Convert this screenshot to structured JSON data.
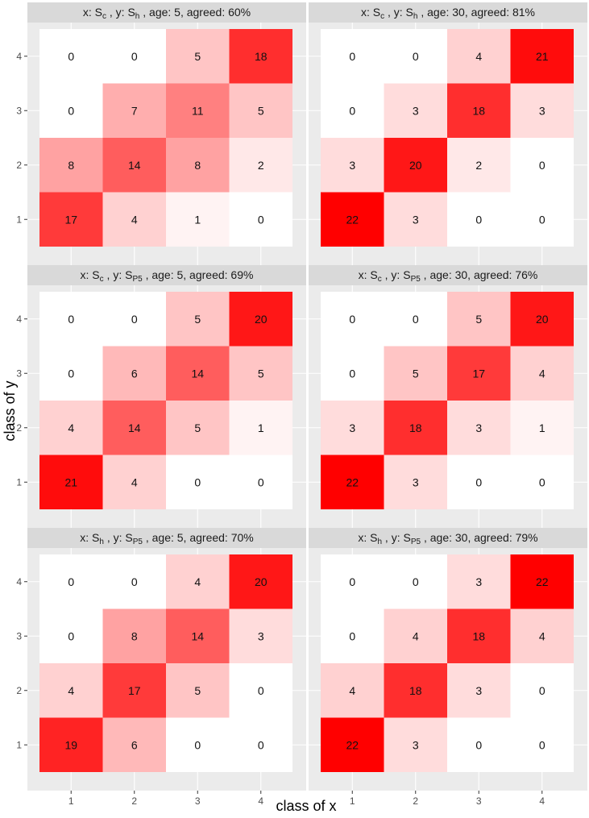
{
  "chart_data": {
    "type": "heatmap",
    "xlabel": "class of x",
    "ylabel": "class of y",
    "x_ticks": [
      "1",
      "2",
      "3",
      "4"
    ],
    "y_ticks": [
      "1",
      "2",
      "3",
      "4"
    ],
    "color_scale": {
      "low": "#ffffff",
      "high": "#ff0000",
      "min": 0,
      "max": 22
    },
    "panels": [
      {
        "title": {
          "pre": "x: S",
          "xsub": "c",
          "mid": " , y: S",
          "ysub": "h",
          "post": " , age: 5, agreed: 60%"
        },
        "matrix_rows_y_top_to_bottom": [
          [
            0,
            0,
            5,
            18
          ],
          [
            0,
            7,
            11,
            5
          ],
          [
            8,
            14,
            8,
            2
          ],
          [
            17,
            4,
            1,
            0
          ]
        ]
      },
      {
        "title": {
          "pre": "x: S",
          "xsub": "c",
          "mid": " , y: S",
          "ysub": "h",
          "post": " , age: 30, agreed: 81%"
        },
        "matrix_rows_y_top_to_bottom": [
          [
            0,
            0,
            4,
            21
          ],
          [
            0,
            3,
            18,
            3
          ],
          [
            3,
            20,
            2,
            0
          ],
          [
            22,
            3,
            0,
            0
          ]
        ]
      },
      {
        "title": {
          "pre": "x: S",
          "xsub": "c",
          "mid": " , y: S",
          "ysub": "P5",
          "post": " , age: 5, agreed: 69%"
        },
        "matrix_rows_y_top_to_bottom": [
          [
            0,
            0,
            5,
            20
          ],
          [
            0,
            6,
            14,
            5
          ],
          [
            4,
            14,
            5,
            1
          ],
          [
            21,
            4,
            0,
            0
          ]
        ]
      },
      {
        "title": {
          "pre": "x: S",
          "xsub": "c",
          "mid": " , y: S",
          "ysub": "P5",
          "post": " , age: 30, agreed: 76%"
        },
        "matrix_rows_y_top_to_bottom": [
          [
            0,
            0,
            5,
            20
          ],
          [
            0,
            5,
            17,
            4
          ],
          [
            3,
            18,
            3,
            1
          ],
          [
            22,
            3,
            0,
            0
          ]
        ]
      },
      {
        "title": {
          "pre": "x: S",
          "xsub": "h",
          "mid": " , y: S",
          "ysub": "P5",
          "post": " , age: 5, agreed: 70%"
        },
        "matrix_rows_y_top_to_bottom": [
          [
            0,
            0,
            4,
            20
          ],
          [
            0,
            8,
            14,
            3
          ],
          [
            4,
            17,
            5,
            0
          ],
          [
            19,
            6,
            0,
            0
          ]
        ]
      },
      {
        "title": {
          "pre": "x: S",
          "xsub": "h",
          "mid": " , y: S",
          "ysub": "P5",
          "post": " , age: 30, agreed: 79%"
        },
        "matrix_rows_y_top_to_bottom": [
          [
            0,
            0,
            3,
            22
          ],
          [
            0,
            4,
            18,
            4
          ],
          [
            4,
            18,
            3,
            0
          ],
          [
            22,
            3,
            0,
            0
          ]
        ]
      }
    ]
  }
}
